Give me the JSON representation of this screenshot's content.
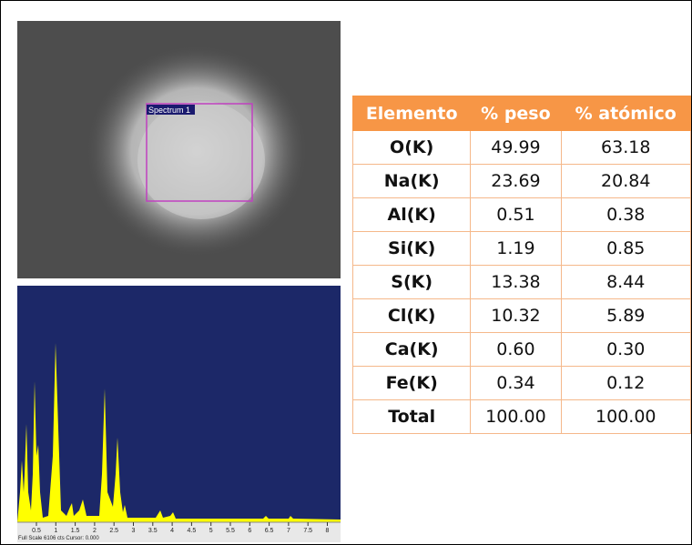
{
  "sem_image": {
    "label": "Spectrum 1"
  },
  "spectrum": {
    "axis_labels": [
      "0.5",
      "1",
      "1.5",
      "2",
      "2.5",
      "3",
      "3.5",
      "4",
      "4.5",
      "5",
      "5.5",
      "6",
      "6.5",
      "7",
      "7.5",
      "8"
    ],
    "footer": "Full Scale 6106 cts Cursor: 0.000"
  },
  "table": {
    "header": [
      "Elemento",
      "% peso",
      "% atómico"
    ],
    "rows": [
      [
        "O(K)",
        "49.99",
        "63.18"
      ],
      [
        "Na(K)",
        "23.69",
        "20.84"
      ],
      [
        "Al(K)",
        "0.51",
        "0.38"
      ],
      [
        "Si(K)",
        "1.19",
        "0.85"
      ],
      [
        "S(K)",
        "13.38",
        "8.44"
      ],
      [
        "Cl(K)",
        "10.32",
        "5.89"
      ],
      [
        "Ca(K)",
        "0.60",
        "0.30"
      ],
      [
        "Fe(K)",
        "0.34",
        "0.12"
      ],
      [
        "Total",
        "100.00",
        "100.00"
      ]
    ]
  }
}
